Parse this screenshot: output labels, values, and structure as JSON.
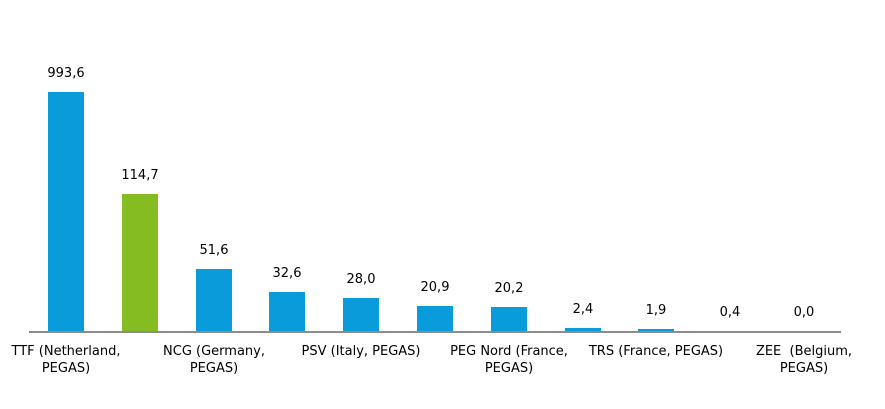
{
  "chart_data": {
    "type": "bar",
    "values": [
      993.6,
      114.7,
      51.6,
      32.6,
      28.0,
      20.9,
      20.2,
      2.4,
      1.9,
      0.4,
      0.0
    ],
    "value_labels": [
      "993,6",
      "114,7",
      "51,6",
      "32,6",
      "28,0",
      "20,9",
      "20,2",
      "2,4",
      "1,9",
      "0,4",
      "0,0"
    ],
    "bar_colors": [
      "#0A9BDA",
      "#84BC22",
      "#0A9BDA",
      "#0A9BDA",
      "#0A9BDA",
      "#0A9BDA",
      "#0A9BDA",
      "#0A9BDA",
      "#0A9BDA",
      "#0A9BDA",
      "#0A9BDA"
    ],
    "category_ticks": [
      {
        "index": 0,
        "label": "TTF (Netherland,\nPEGAS)"
      },
      {
        "index": 2,
        "label": "NCG (Germany,\nPEGAS)"
      },
      {
        "index": 4,
        "label": "PSV (Italy, PEGAS)"
      },
      {
        "index": 6,
        "label": "PEG Nord (France,\nPEGAS)"
      },
      {
        "index": 8,
        "label": "TRS (France, PEGAS)"
      },
      {
        "index": 10,
        "label": "ZEE  (Belgium,\nPEGAS)"
      }
    ],
    "title": "",
    "xlabel": "",
    "ylabel": "",
    "ylim": [
      0,
      200
    ],
    "gridlines": false,
    "legend": false,
    "y_axis_visible": false,
    "decimal_separator": ",",
    "note_first_bar_clipped_at_axis_max": true
  },
  "colors": {
    "bar_default": "#0A9BDA",
    "bar_highlight": "#84BC22",
    "axis_line": "#8C8C8C",
    "label_text": "#000000",
    "background": "#FFFFFF"
  }
}
